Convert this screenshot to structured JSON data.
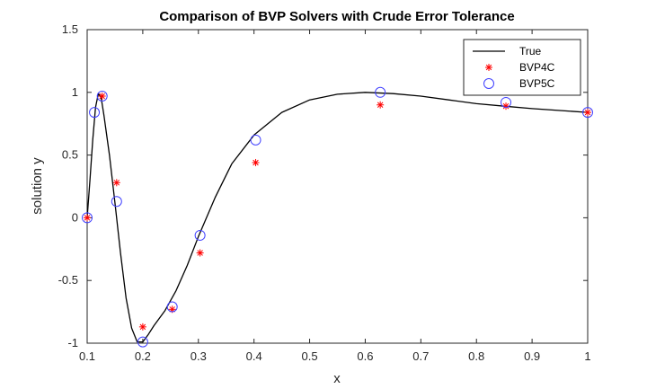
{
  "chart_data": {
    "type": "line",
    "title": "Comparison of BVP Solvers with Crude Error Tolerance",
    "xlabel": "x",
    "ylabel": "solution y",
    "xlim": [
      0.1,
      1
    ],
    "ylim": [
      -1,
      1.5
    ],
    "xticks": [
      "0.1",
      "0.2",
      "0.3",
      "0.4",
      "0.5",
      "0.6",
      "0.7",
      "0.8",
      "0.9",
      "1"
    ],
    "yticks": [
      "-1",
      "-0.5",
      "0",
      "0.5",
      "1",
      "1.5"
    ],
    "grid": false,
    "legend_position": "top-right",
    "series": [
      {
        "name": "True",
        "style": "line",
        "color": "#000000",
        "x": [
          0.1,
          0.105,
          0.11,
          0.115,
          0.12,
          0.125,
          0.13,
          0.14,
          0.15,
          0.16,
          0.17,
          0.18,
          0.19,
          0.2,
          0.21,
          0.22,
          0.24,
          0.26,
          0.28,
          0.3,
          0.33,
          0.36,
          0.4,
          0.45,
          0.5,
          0.55,
          0.6,
          0.65,
          0.7,
          0.75,
          0.8,
          0.85,
          0.9,
          0.95,
          1.0
        ],
        "y": [
          0.0,
          0.3,
          0.62,
          0.88,
          0.99,
          0.96,
          0.82,
          0.5,
          0.12,
          -0.28,
          -0.64,
          -0.88,
          -0.99,
          -0.99,
          -0.93,
          -0.86,
          -0.74,
          -0.58,
          -0.38,
          -0.15,
          0.16,
          0.43,
          0.66,
          0.84,
          0.94,
          0.985,
          1.0,
          0.99,
          0.97,
          0.94,
          0.91,
          0.89,
          0.87,
          0.855,
          0.84
        ]
      },
      {
        "name": "BVP4C",
        "style": "star",
        "color": "#ff0000",
        "x": [
          0.1,
          0.127,
          0.153,
          0.2,
          0.253,
          0.303,
          0.403,
          0.627,
          0.853,
          1.0
        ],
        "y": [
          0.0,
          0.97,
          0.28,
          -0.87,
          -0.73,
          -0.28,
          0.44,
          0.9,
          0.89,
          0.84
        ]
      },
      {
        "name": "BVP5C",
        "style": "circle",
        "color": "#4040ff",
        "x": [
          0.1,
          0.113,
          0.127,
          0.153,
          0.2,
          0.253,
          0.303,
          0.403,
          0.627,
          0.853,
          1.0
        ],
        "y": [
          0.0,
          0.84,
          0.97,
          0.13,
          -0.99,
          -0.71,
          -0.14,
          0.62,
          1.0,
          0.92,
          0.84
        ]
      }
    ]
  }
}
